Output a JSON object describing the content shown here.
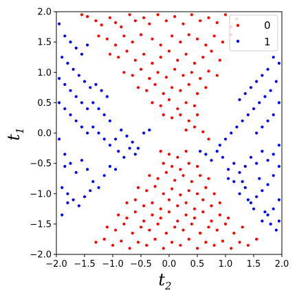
{
  "chart_data": {
    "type": "scatter",
    "xlabel": "t",
    "xlabel_sub": "2",
    "ylabel": "t",
    "ylabel_sub": "1",
    "xlim": [
      -2.0,
      2.0
    ],
    "ylim": [
      -2.0,
      2.0
    ],
    "grid": false,
    "legend_position": "top-right",
    "xticks": [
      "−2.0",
      "−1.5",
      "−1.0",
      "−0.5",
      "0.0",
      "0.5",
      "1.0",
      "1.5",
      "2.0"
    ],
    "yticks": [
      "−2.0",
      "−1.5",
      "−1.0",
      "−0.5",
      "0.0",
      "0.5",
      "1.0",
      "1.5",
      "2.0"
    ],
    "series": [
      {
        "name": "0",
        "color": "#ff0000",
        "points": [
          [
            -1.55,
            1.95
          ],
          [
            -1.45,
            1.92
          ],
          [
            -1.3,
            1.85
          ],
          [
            -1.2,
            1.78
          ],
          [
            -1.05,
            1.9
          ],
          [
            -0.95,
            1.82
          ],
          [
            -0.85,
            1.75
          ],
          [
            -0.7,
            1.95
          ],
          [
            -0.6,
            1.85
          ],
          [
            -0.45,
            1.9
          ],
          [
            -0.35,
            1.8
          ],
          [
            -0.2,
            1.95
          ],
          [
            -0.05,
            1.85
          ],
          [
            0.1,
            1.92
          ],
          [
            0.25,
            1.8
          ],
          [
            0.4,
            1.95
          ],
          [
            0.55,
            1.85
          ],
          [
            0.7,
            1.9
          ],
          [
            0.85,
            1.82
          ],
          [
            1.0,
            1.95
          ],
          [
            1.1,
            1.75
          ],
          [
            1.2,
            1.88
          ],
          [
            -1.25,
            1.6
          ],
          [
            -1.1,
            1.55
          ],
          [
            -0.95,
            1.45
          ],
          [
            -0.8,
            1.6
          ],
          [
            -0.65,
            1.5
          ],
          [
            -0.5,
            1.62
          ],
          [
            -0.3,
            1.55
          ],
          [
            -0.15,
            1.45
          ],
          [
            0.05,
            1.6
          ],
          [
            0.2,
            1.5
          ],
          [
            0.35,
            1.62
          ],
          [
            0.5,
            1.55
          ],
          [
            0.65,
            1.45
          ],
          [
            0.8,
            1.6
          ],
          [
            0.95,
            1.5
          ],
          [
            1.1,
            1.62
          ],
          [
            -1.05,
            1.3
          ],
          [
            -0.9,
            1.25
          ],
          [
            -0.75,
            1.35
          ],
          [
            -0.6,
            1.2
          ],
          [
            -0.45,
            1.3
          ],
          [
            -0.3,
            1.15
          ],
          [
            -0.15,
            1.25
          ],
          [
            0.0,
            1.35
          ],
          [
            0.15,
            1.2
          ],
          [
            0.3,
            1.3
          ],
          [
            0.45,
            1.15
          ],
          [
            0.6,
            1.25
          ],
          [
            0.75,
            1.35
          ],
          [
            0.9,
            1.2
          ],
          [
            -0.8,
            1.0
          ],
          [
            -0.65,
            0.95
          ],
          [
            -0.5,
            1.05
          ],
          [
            -0.35,
            0.9
          ],
          [
            -0.2,
            1.0
          ],
          [
            -0.05,
            0.92
          ],
          [
            0.1,
            1.05
          ],
          [
            0.25,
            0.95
          ],
          [
            0.4,
            1.0
          ],
          [
            0.55,
            0.9
          ],
          [
            0.7,
            1.02
          ],
          [
            0.85,
            0.95
          ],
          [
            -0.55,
            0.75
          ],
          [
            -0.4,
            0.7
          ],
          [
            -0.25,
            0.8
          ],
          [
            -0.1,
            0.65
          ],
          [
            0.05,
            0.75
          ],
          [
            0.2,
            0.7
          ],
          [
            0.35,
            0.8
          ],
          [
            0.5,
            0.65
          ],
          [
            0.65,
            0.75
          ],
          [
            -0.3,
            0.5
          ],
          [
            -0.15,
            0.45
          ],
          [
            0.0,
            0.55
          ],
          [
            0.15,
            0.4
          ],
          [
            0.3,
            0.5
          ],
          [
            0.45,
            0.45
          ],
          [
            -0.1,
            0.3
          ],
          [
            0.05,
            0.25
          ],
          [
            0.2,
            0.3
          ],
          [
            0.35,
            0.2
          ],
          [
            0.5,
            0.3
          ],
          [
            0.3,
            0.05
          ],
          [
            0.45,
            0.1
          ],
          [
            0.6,
            0.02
          ],
          [
            0.7,
            -0.1
          ],
          [
            -0.15,
            -0.3
          ],
          [
            0.0,
            -0.35
          ],
          [
            0.15,
            -0.4
          ],
          [
            0.3,
            -0.3
          ],
          [
            -0.1,
            -0.5
          ],
          [
            0.05,
            -0.55
          ],
          [
            0.2,
            -0.6
          ],
          [
            0.35,
            -0.5
          ],
          [
            0.5,
            -0.55
          ],
          [
            -0.35,
            -0.7
          ],
          [
            -0.2,
            -0.75
          ],
          [
            -0.05,
            -0.65
          ],
          [
            0.1,
            -0.78
          ],
          [
            0.25,
            -0.7
          ],
          [
            0.4,
            -0.8
          ],
          [
            0.55,
            -0.7
          ],
          [
            0.7,
            -0.75
          ],
          [
            -0.55,
            -0.9
          ],
          [
            -0.4,
            -0.95
          ],
          [
            -0.25,
            -0.88
          ],
          [
            -0.1,
            -1.0
          ],
          [
            0.05,
            -0.92
          ],
          [
            0.2,
            -1.02
          ],
          [
            0.35,
            -0.95
          ],
          [
            0.5,
            -1.0
          ],
          [
            0.65,
            -0.9
          ],
          [
            0.8,
            -1.0
          ],
          [
            -0.75,
            -1.15
          ],
          [
            -0.6,
            -1.1
          ],
          [
            -0.45,
            -1.2
          ],
          [
            -0.3,
            -1.15
          ],
          [
            -0.15,
            -1.25
          ],
          [
            0.0,
            -1.1
          ],
          [
            0.15,
            -1.2
          ],
          [
            0.3,
            -1.15
          ],
          [
            0.45,
            -1.25
          ],
          [
            0.6,
            -1.1
          ],
          [
            0.75,
            -1.2
          ],
          [
            0.9,
            -1.15
          ],
          [
            -0.9,
            -1.35
          ],
          [
            -0.75,
            -1.4
          ],
          [
            -0.6,
            -1.3
          ],
          [
            -0.45,
            -1.45
          ],
          [
            -0.3,
            -1.35
          ],
          [
            -0.15,
            -1.4
          ],
          [
            0.0,
            -1.3
          ],
          [
            0.15,
            -1.45
          ],
          [
            0.3,
            -1.35
          ],
          [
            0.45,
            -1.4
          ],
          [
            0.6,
            -1.3
          ],
          [
            0.75,
            -1.45
          ],
          [
            0.9,
            -1.35
          ],
          [
            1.05,
            -1.4
          ],
          [
            -1.1,
            -1.55
          ],
          [
            -0.95,
            -1.6
          ],
          [
            -0.8,
            -1.5
          ],
          [
            -0.65,
            -1.65
          ],
          [
            -0.5,
            -1.55
          ],
          [
            -0.35,
            -1.6
          ],
          [
            -0.2,
            -1.5
          ],
          [
            -0.05,
            -1.65
          ],
          [
            0.1,
            -1.55
          ],
          [
            0.25,
            -1.6
          ],
          [
            0.4,
            -1.5
          ],
          [
            0.55,
            -1.65
          ],
          [
            0.7,
            -1.55
          ],
          [
            0.85,
            -1.6
          ],
          [
            1.0,
            -1.5
          ],
          [
            1.15,
            -1.65
          ],
          [
            1.3,
            -1.55
          ],
          [
            -1.3,
            -1.8
          ],
          [
            -1.15,
            -1.75
          ],
          [
            -1.0,
            -1.85
          ],
          [
            -0.85,
            -1.78
          ],
          [
            -0.7,
            -1.9
          ],
          [
            -0.55,
            -1.8
          ],
          [
            -0.4,
            -1.85
          ],
          [
            -0.25,
            -1.75
          ],
          [
            -0.1,
            -1.9
          ],
          [
            0.05,
            -1.8
          ],
          [
            0.2,
            -1.85
          ],
          [
            0.35,
            -1.75
          ],
          [
            0.5,
            -1.9
          ],
          [
            0.65,
            -1.8
          ],
          [
            0.8,
            -1.85
          ],
          [
            0.95,
            -1.78
          ],
          [
            1.1,
            -1.9
          ],
          [
            1.25,
            -1.8
          ],
          [
            1.4,
            -1.85
          ],
          [
            1.55,
            -1.75
          ]
        ]
      },
      {
        "name": "1",
        "color": "#0000ff",
        "points": [
          [
            -1.95,
            1.8
          ],
          [
            -1.85,
            1.6
          ],
          [
            -1.75,
            1.5
          ],
          [
            -1.65,
            1.4
          ],
          [
            -1.55,
            1.3
          ],
          [
            -1.45,
            1.45
          ],
          [
            -1.9,
            1.25
          ],
          [
            -1.8,
            1.15
          ],
          [
            -1.7,
            1.05
          ],
          [
            -1.6,
            0.95
          ],
          [
            -1.5,
            0.85
          ],
          [
            -1.4,
            0.75
          ],
          [
            -1.3,
            0.8
          ],
          [
            -1.2,
            0.7
          ],
          [
            -1.1,
            0.6
          ],
          [
            -1.95,
            0.9
          ],
          [
            -1.85,
            0.8
          ],
          [
            -1.75,
            0.7
          ],
          [
            -1.65,
            0.6
          ],
          [
            -1.55,
            0.5
          ],
          [
            -1.45,
            0.4
          ],
          [
            -1.35,
            0.5
          ],
          [
            -1.25,
            0.4
          ],
          [
            -1.15,
            0.3
          ],
          [
            -1.05,
            0.2
          ],
          [
            -1.95,
            0.5
          ],
          [
            -1.85,
            0.4
          ],
          [
            -1.75,
            0.3
          ],
          [
            -1.65,
            0.2
          ],
          [
            -1.55,
            0.1
          ],
          [
            -1.45,
            0.0
          ],
          [
            -1.35,
            0.1
          ],
          [
            -1.25,
            0.0
          ],
          [
            -1.15,
            -0.1
          ],
          [
            -1.05,
            -0.2
          ],
          [
            -0.95,
            -0.1
          ],
          [
            -0.85,
            0.05
          ],
          [
            -0.75,
            -0.05
          ],
          [
            -0.65,
            -0.15
          ],
          [
            -0.55,
            -0.25
          ],
          [
            -0.45,
            0.0
          ],
          [
            -0.35,
            0.05
          ],
          [
            -0.9,
            -0.3
          ],
          [
            -0.8,
            -0.4
          ],
          [
            -0.7,
            -0.25
          ],
          [
            -0.6,
            -0.35
          ],
          [
            -1.95,
            -0.1
          ],
          [
            -1.85,
            -0.35
          ],
          [
            -1.75,
            -0.5
          ],
          [
            -1.65,
            -0.65
          ],
          [
            -1.55,
            -0.45
          ],
          [
            -1.45,
            -0.6
          ],
          [
            -1.35,
            -0.8
          ],
          [
            -1.25,
            -0.9
          ],
          [
            -1.15,
            -0.7
          ],
          [
            -1.05,
            -0.55
          ],
          [
            -0.95,
            -0.6
          ],
          [
            -1.9,
            -0.9
          ],
          [
            -1.8,
            -1.0
          ],
          [
            -1.7,
            -1.1
          ],
          [
            -1.6,
            -1.2
          ],
          [
            -1.5,
            -1.05
          ],
          [
            -1.4,
            -0.95
          ],
          [
            -1.9,
            -1.35
          ],
          [
            -1.8,
            -1.15
          ],
          [
            -1.85,
            -0.55
          ],
          [
            1.95,
            1.15
          ],
          [
            1.85,
            1.25
          ],
          [
            1.75,
            1.05
          ],
          [
            1.65,
            0.95
          ],
          [
            1.55,
            0.85
          ],
          [
            1.45,
            0.75
          ],
          [
            1.35,
            0.65
          ],
          [
            1.25,
            0.55
          ],
          [
            1.9,
            0.85
          ],
          [
            1.8,
            0.7
          ],
          [
            1.7,
            0.6
          ],
          [
            1.6,
            0.5
          ],
          [
            1.5,
            0.4
          ],
          [
            1.4,
            0.3
          ],
          [
            1.3,
            0.2
          ],
          [
            1.2,
            0.1
          ],
          [
            1.1,
            0.0
          ],
          [
            1.0,
            -0.1
          ],
          [
            0.9,
            -0.2
          ],
          [
            1.95,
            0.5
          ],
          [
            1.85,
            0.3
          ],
          [
            1.75,
            0.2
          ],
          [
            1.65,
            0.1
          ],
          [
            1.55,
            0.0
          ],
          [
            1.95,
            -0.2
          ],
          [
            1.85,
            -0.35
          ],
          [
            1.75,
            -0.45
          ],
          [
            1.65,
            -0.3
          ],
          [
            1.55,
            -0.5
          ],
          [
            1.45,
            -0.4
          ],
          [
            1.35,
            -0.55
          ],
          [
            1.25,
            -0.65
          ],
          [
            1.15,
            -0.5
          ],
          [
            1.05,
            -0.6
          ],
          [
            0.95,
            -0.4
          ],
          [
            0.85,
            -0.3
          ],
          [
            0.75,
            -0.45
          ],
          [
            0.65,
            -0.35
          ],
          [
            0.55,
            -0.3
          ],
          [
            1.95,
            -0.55
          ],
          [
            1.85,
            -0.7
          ],
          [
            1.75,
            -0.85
          ],
          [
            1.65,
            -0.95
          ],
          [
            1.55,
            -1.05
          ],
          [
            1.45,
            -1.15
          ],
          [
            1.35,
            -0.9
          ],
          [
            1.25,
            -1.0
          ],
          [
            1.15,
            -0.8
          ],
          [
            1.05,
            -0.75
          ],
          [
            1.95,
            -1.1
          ],
          [
            1.85,
            -1.25
          ],
          [
            1.75,
            -1.35
          ],
          [
            1.65,
            -1.45
          ],
          [
            1.95,
            -1.45
          ],
          [
            1.9,
            -1.6
          ],
          [
            1.8,
            -1.5
          ],
          [
            1.7,
            -1.3
          ],
          [
            1.5,
            -1.25
          ],
          [
            1.4,
            -1.1
          ],
          [
            1.6,
            -0.75
          ],
          [
            1.3,
            -0.8
          ]
        ]
      }
    ]
  }
}
